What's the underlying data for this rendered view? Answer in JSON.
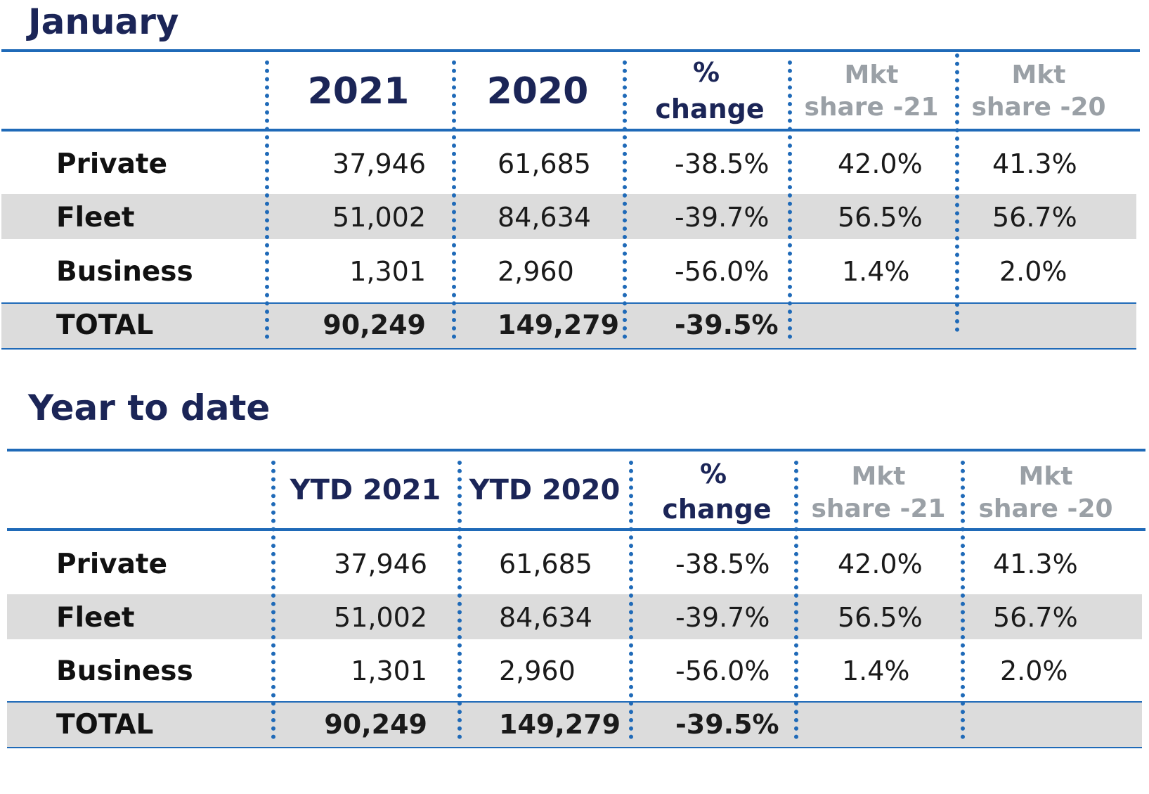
{
  "sections": [
    {
      "title": "January",
      "headers": {
        "label": "",
        "col1": "2021",
        "col2": "2020",
        "pct_line1": "%",
        "pct_line2": "change",
        "mkt21_line1": "Mkt",
        "mkt21_line2": "share -21",
        "mkt20_line1": "Mkt",
        "mkt20_line2": "share -20"
      },
      "rows": [
        {
          "label": "Private",
          "v1": "37,946",
          "v2": "61,685",
          "pct": "-38.5%",
          "mkt21": "42.0%",
          "mkt20": "41.3%"
        },
        {
          "label": "Fleet",
          "v1": "51,002",
          "v2": "84,634",
          "pct": "-39.7%",
          "mkt21": "56.5%",
          "mkt20": "56.7%"
        },
        {
          "label": "Business",
          "v1": "1,301",
          "v2": "2,960",
          "pct": "-56.0%",
          "mkt21": "1.4%",
          "mkt20": "2.0%"
        }
      ],
      "total": {
        "label": "TOTAL",
        "v1": "90,249",
        "v2": "149,279",
        "pct": "-39.5%"
      }
    },
    {
      "title": "Year to date",
      "headers": {
        "label": "",
        "col1": "YTD 2021",
        "col2": "YTD 2020",
        "pct_line1": "%",
        "pct_line2": "change",
        "mkt21_line1": "Mkt",
        "mkt21_line2": "share -21",
        "mkt20_line1": "Mkt",
        "mkt20_line2": "share -20"
      },
      "rows": [
        {
          "label": "Private",
          "v1": "37,946",
          "v2": "61,685",
          "pct": "-38.5%",
          "mkt21": "42.0%",
          "mkt20": "41.3%"
        },
        {
          "label": "Fleet",
          "v1": "51,002",
          "v2": "84,634",
          "pct": "-39.7%",
          "mkt21": "56.5%",
          "mkt20": "56.7%"
        },
        {
          "label": "Business",
          "v1": "1,301",
          "v2": "2,960",
          "pct": "-56.0%",
          "mkt21": "1.4%",
          "mkt20": "2.0%"
        }
      ],
      "total": {
        "label": "TOTAL",
        "v1": "90,249",
        "v2": "149,279",
        "pct": "-39.5%"
      }
    }
  ],
  "colors": {
    "accent": "#1f6ab8",
    "title": "#1b2557",
    "shade": "#dcdcdc",
    "muted": "#9aa0a6"
  }
}
